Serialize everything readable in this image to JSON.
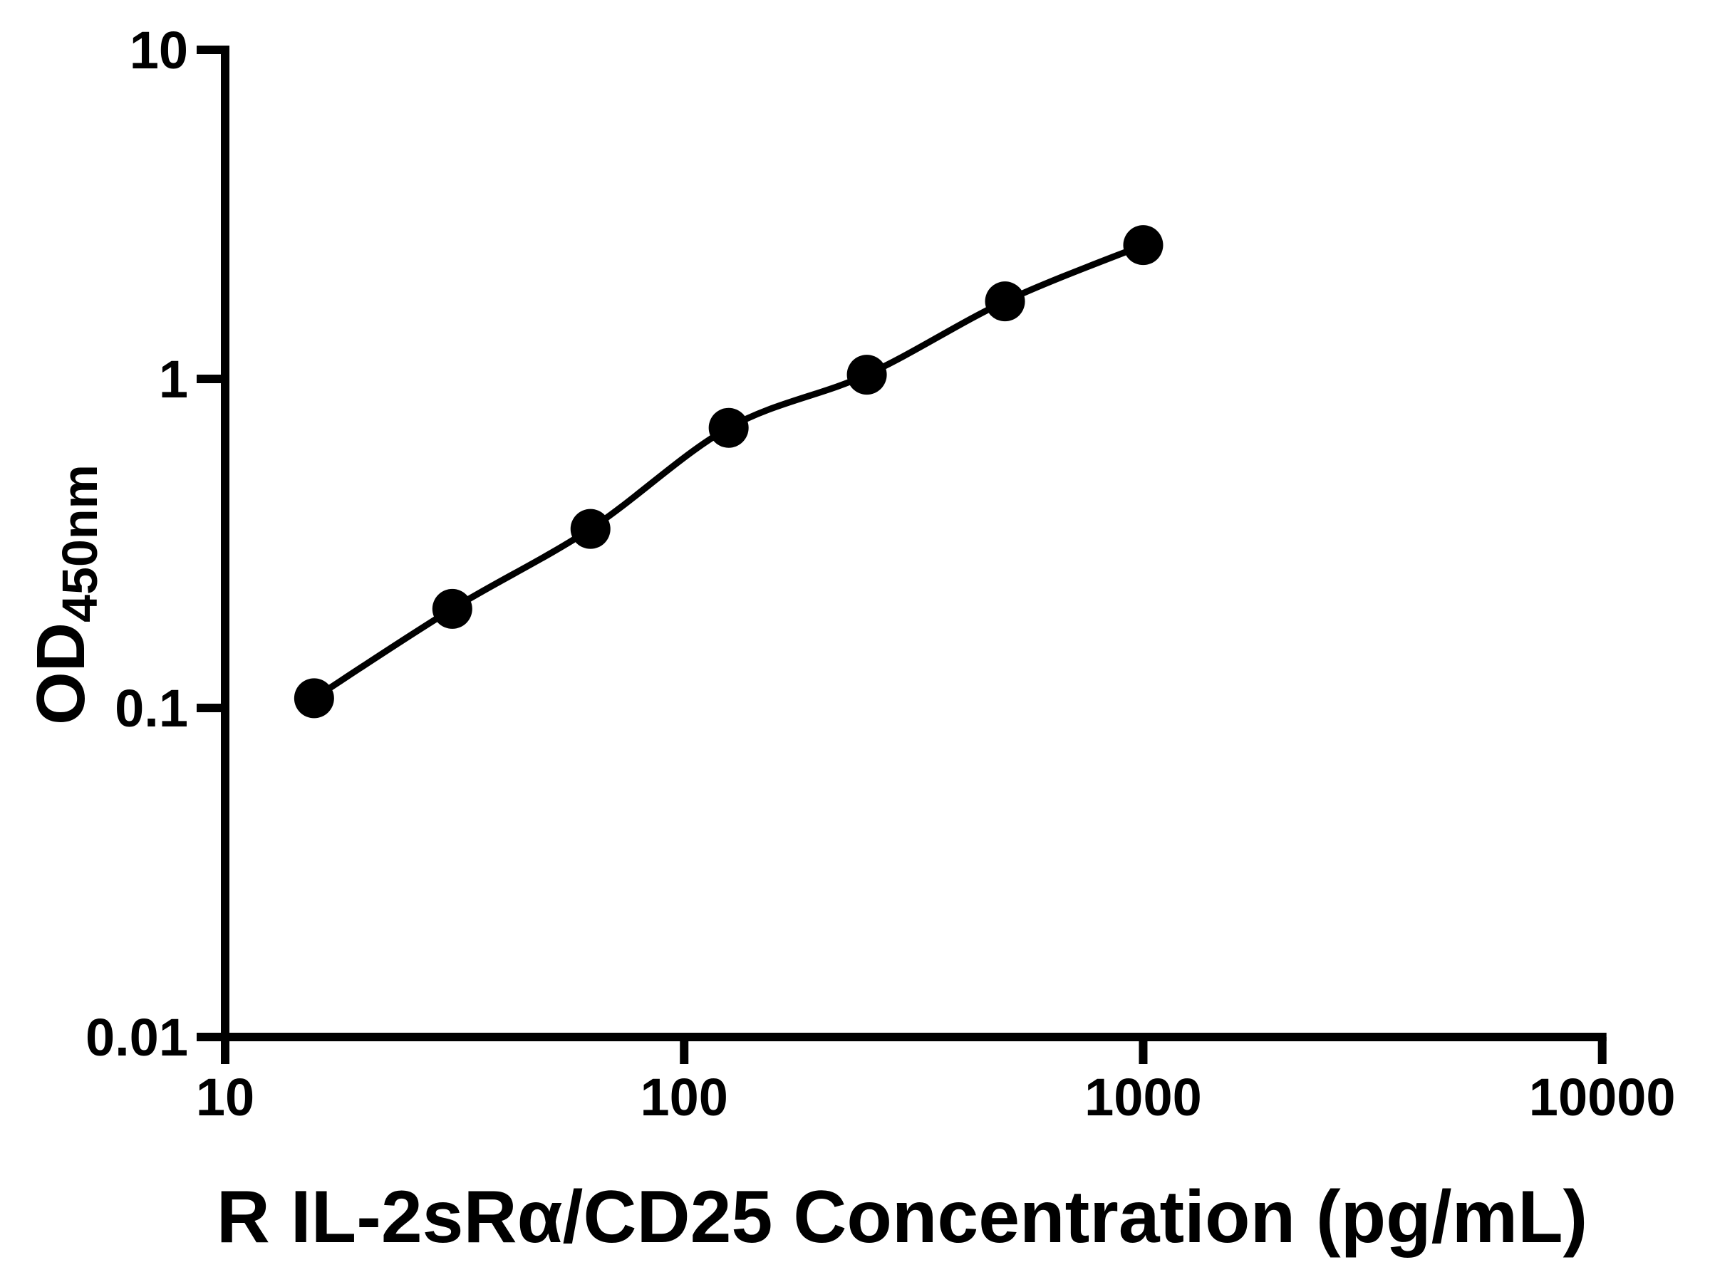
{
  "figure": {
    "background": "#ffffff",
    "foreground": "#000000"
  },
  "chart_data": {
    "type": "scatter",
    "subtype": "standard-curve-with-connecting-line",
    "title": "",
    "xlabel": "R IL-2sRα/CD25 Concentration (pg/mL)",
    "ylabel": "OD450nm",
    "ylabel_main": "OD",
    "ylabel_sub": "450nm",
    "xscale": "log",
    "yscale": "log",
    "xlim": [
      10,
      10000
    ],
    "ylim": [
      0.01,
      10
    ],
    "grid": false,
    "legend": "none",
    "marker_color": "#000000",
    "line_color": "#000000",
    "axis_color": "#000000",
    "x": [
      15.625,
      31.25,
      62.5,
      125,
      250,
      500,
      1000
    ],
    "y": [
      0.107,
      0.2,
      0.35,
      0.71,
      1.03,
      1.72,
      2.55
    ],
    "xticks": {
      "values": [
        10,
        100,
        1000,
        10000
      ],
      "labels": [
        "10",
        "100",
        "1000",
        "10000"
      ]
    },
    "yticks": {
      "values": [
        0.01,
        0.1,
        1,
        10
      ],
      "labels": [
        "0.01",
        "0.1",
        "1",
        "10"
      ]
    }
  }
}
